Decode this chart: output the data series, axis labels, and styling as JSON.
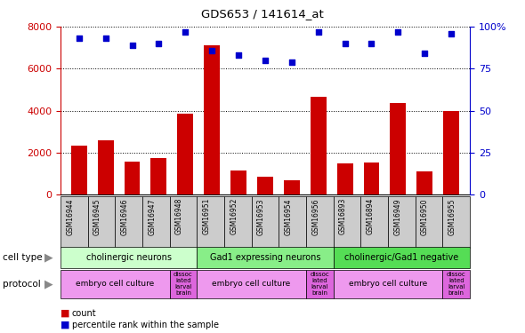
{
  "title": "GDS653 / 141614_at",
  "samples": [
    "GSM16944",
    "GSM16945",
    "GSM16946",
    "GSM16947",
    "GSM16948",
    "GSM16951",
    "GSM16952",
    "GSM16953",
    "GSM16954",
    "GSM16956",
    "GSM16893",
    "GSM16894",
    "GSM16949",
    "GSM16950",
    "GSM16955"
  ],
  "counts": [
    2350,
    2600,
    1600,
    1750,
    3850,
    7100,
    1150,
    850,
    700,
    4650,
    1500,
    1550,
    4350,
    1100,
    4000
  ],
  "percentiles": [
    93,
    93,
    89,
    90,
    97,
    86,
    83,
    80,
    79,
    97,
    90,
    90,
    97,
    84,
    96
  ],
  "bar_color": "#cc0000",
  "dot_color": "#0000cc",
  "ylim_left": [
    0,
    8000
  ],
  "ylim_right": [
    0,
    100
  ],
  "yticks_left": [
    0,
    2000,
    4000,
    6000,
    8000
  ],
  "yticks_right": [
    0,
    25,
    50,
    75,
    100
  ],
  "cell_type_groups": [
    {
      "label": "cholinergic neurons",
      "start": 0,
      "end": 5,
      "color": "#ccffcc"
    },
    {
      "label": "Gad1 expressing neurons",
      "start": 5,
      "end": 10,
      "color": "#88ee88"
    },
    {
      "label": "cholinergic/Gad1 negative",
      "start": 10,
      "end": 15,
      "color": "#55dd55"
    }
  ],
  "protocol_groups": [
    {
      "label": "embryo cell culture",
      "start": 0,
      "end": 4,
      "color": "#ee88ee"
    },
    {
      "label": "dissociated larval brain",
      "start": 4,
      "end": 5,
      "color": "#dd55dd"
    },
    {
      "label": "embryo cell culture",
      "start": 5,
      "end": 9,
      "color": "#ee88ee"
    },
    {
      "label": "dissociated larval brain",
      "start": 9,
      "end": 10,
      "color": "#dd55dd"
    },
    {
      "label": "embryo cell culture",
      "start": 10,
      "end": 14,
      "color": "#ee88ee"
    },
    {
      "label": "dissociated larval brain",
      "start": 14,
      "end": 15,
      "color": "#dd55dd"
    }
  ],
  "label_color_left": "#cc0000",
  "label_color_right": "#0000cc",
  "arrow_color": "#888888",
  "sample_bg_color": "#cccccc",
  "bar_width": 0.6
}
